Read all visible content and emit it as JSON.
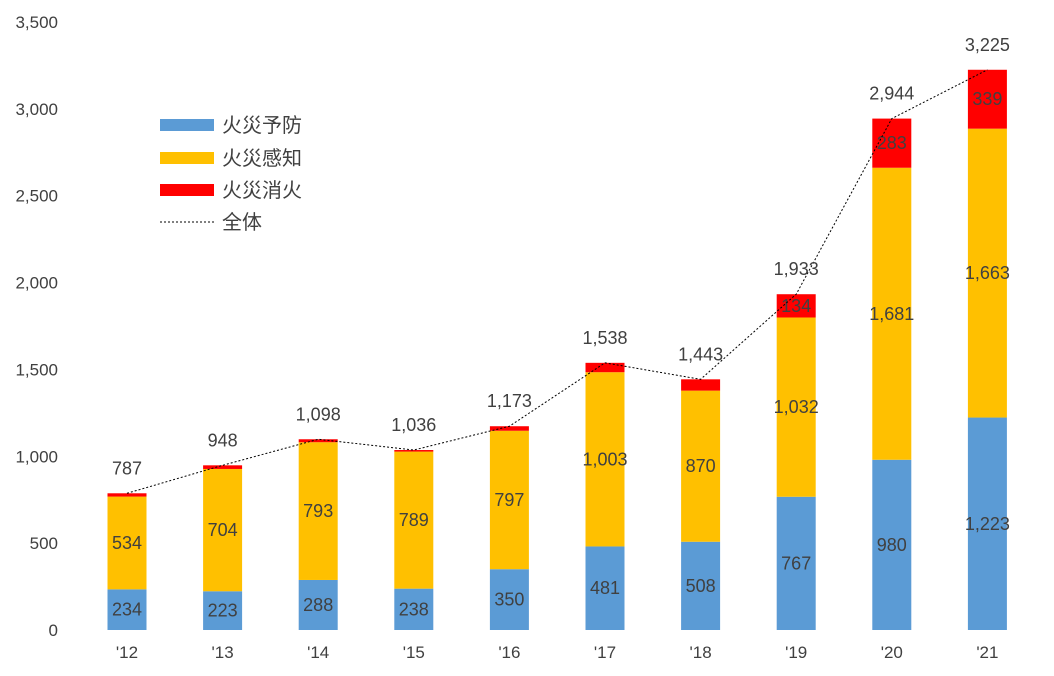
{
  "chart_data": {
    "type": "bar",
    "stacked": true,
    "categories": [
      "'12",
      "'13",
      "'14",
      "'15",
      "'16",
      "'17",
      "'18",
      "'19",
      "'20",
      "'21"
    ],
    "series": [
      {
        "name": "火災予防",
        "color": "#5b9bd5",
        "values": [
          234,
          223,
          288,
          238,
          350,
          481,
          508,
          767,
          980,
          1223
        ],
        "labels": [
          "234",
          "223",
          "288",
          "238",
          "350",
          "481",
          "508",
          "767",
          "980",
          "1,223"
        ]
      },
      {
        "name": "火災感知",
        "color": "#ffc000",
        "values": [
          534,
          704,
          793,
          789,
          797,
          1003,
          870,
          1032,
          1681,
          1663
        ],
        "labels": [
          "534",
          "704",
          "793",
          "789",
          "797",
          "1,003",
          "870",
          "1,032",
          "1,681",
          "1,663"
        ]
      },
      {
        "name": "火災消火",
        "color": "#ff0000",
        "values": [
          19,
          21,
          17,
          9,
          26,
          54,
          65,
          134,
          283,
          339
        ],
        "labels": [
          "",
          "",
          "",
          "",
          "",
          "",
          "",
          "134",
          "283",
          "339"
        ]
      }
    ],
    "total": {
      "name": "全体",
      "line_style": "dotted",
      "color": "#000000",
      "values": [
        787,
        948,
        1098,
        1036,
        1173,
        1538,
        1443,
        1933,
        2944,
        3225
      ],
      "labels": [
        "787",
        "948",
        "1,098",
        "1,036",
        "1,173",
        "1,538",
        "1,443",
        "1,933",
        "2,944",
        "3,225"
      ]
    },
    "yticks": [
      "0",
      "500",
      "1,000",
      "1,500",
      "2,000",
      "2,500",
      "3,000",
      "3,500"
    ],
    "ylim": [
      0,
      3500
    ],
    "grid": false,
    "legend_position": "top-left",
    "title": "",
    "xlabel": "",
    "ylabel": ""
  }
}
